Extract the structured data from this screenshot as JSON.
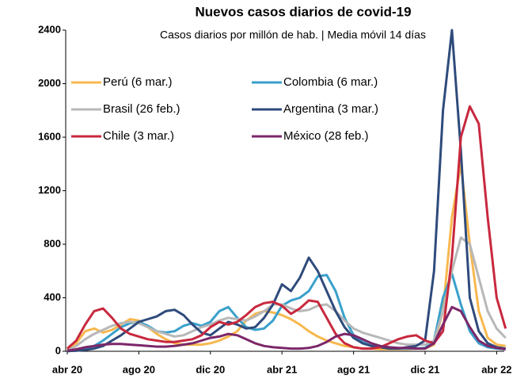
{
  "chart_data": {
    "type": "line",
    "title": "Nuevos casos diarios de covid-19",
    "subtitle": "Casos diarios por millón de hab. | Media móvil 14 días",
    "categories": [
      "abr 20",
      null,
      null,
      null,
      null,
      null,
      null,
      null,
      "ago 20",
      null,
      null,
      null,
      null,
      null,
      null,
      null,
      "dic 20",
      null,
      null,
      null,
      null,
      null,
      null,
      null,
      "abr 21",
      null,
      null,
      null,
      null,
      null,
      null,
      null,
      "ago 21",
      null,
      null,
      null,
      null,
      null,
      null,
      null,
      "dic 21",
      null,
      null,
      null,
      null,
      null,
      null,
      null,
      "abr 22",
      null
    ],
    "ylim": [
      0,
      2400
    ],
    "yticks": [
      0,
      400,
      800,
      1200,
      1600,
      2000,
      2400
    ],
    "grid": false,
    "series": [
      {
        "name": "Perú (6 mar.)",
        "color": "#f7b84f",
        "values": [
          10,
          60,
          150,
          170,
          140,
          160,
          200,
          240,
          230,
          180,
          130,
          90,
          60,
          50,
          50,
          50,
          60,
          80,
          110,
          150,
          230,
          280,
          300,
          290,
          270,
          240,
          200,
          150,
          110,
          80,
          60,
          40,
          30,
          20,
          20,
          15,
          15,
          15,
          15,
          20,
          20,
          50,
          300,
          1000,
          1400,
          800,
          300,
          100,
          50,
          40
        ]
      },
      {
        "name": "Colombia (6 mar.)",
        "color": "#3aa0cb",
        "values": [
          2,
          5,
          15,
          40,
          80,
          130,
          180,
          210,
          220,
          190,
          150,
          140,
          150,
          190,
          210,
          190,
          220,
          300,
          330,
          250,
          180,
          160,
          170,
          230,
          340,
          380,
          400,
          450,
          560,
          570,
          450,
          250,
          120,
          70,
          40,
          30,
          25,
          20,
          20,
          20,
          25,
          80,
          400,
          580,
          350,
          150,
          60,
          30,
          20,
          15
        ]
      },
      {
        "name": "Brasil (26 feb.)",
        "color": "#b8b8b8",
        "values": [
          5,
          40,
          90,
          130,
          160,
          190,
          210,
          220,
          210,
          180,
          150,
          130,
          110,
          120,
          150,
          180,
          200,
          230,
          250,
          240,
          230,
          260,
          300,
          350,
          350,
          320,
          300,
          310,
          340,
          350,
          300,
          230,
          170,
          140,
          120,
          100,
          80,
          60,
          50,
          50,
          50,
          80,
          300,
          600,
          850,
          800,
          550,
          300,
          170,
          100
        ]
      },
      {
        "name": "Argentina (3 mar.)",
        "color": "#2f4b7c",
        "values": [
          2,
          5,
          10,
          20,
          40,
          80,
          120,
          170,
          220,
          240,
          260,
          300,
          310,
          270,
          200,
          140,
          120,
          170,
          220,
          200,
          170,
          180,
          250,
          350,
          500,
          450,
          550,
          700,
          600,
          450,
          300,
          180,
          100,
          60,
          40,
          30,
          20,
          20,
          30,
          40,
          80,
          600,
          1800,
          2400,
          1500,
          400,
          150,
          60,
          30,
          20
        ]
      },
      {
        "name": "Chile (3 mar.)",
        "color": "#c8283e",
        "values": [
          20,
          80,
          200,
          300,
          320,
          250,
          170,
          130,
          110,
          90,
          80,
          70,
          70,
          80,
          90,
          120,
          180,
          220,
          200,
          220,
          270,
          330,
          360,
          370,
          340,
          280,
          320,
          380,
          370,
          250,
          130,
          60,
          30,
          20,
          20,
          30,
          60,
          90,
          110,
          120,
          80,
          60,
          150,
          700,
          1600,
          1830,
          1700,
          1000,
          400,
          170
        ]
      },
      {
        "name": "México (28 feb.)",
        "color": "#7b2769",
        "values": [
          5,
          15,
          30,
          40,
          50,
          55,
          55,
          50,
          45,
          40,
          35,
          35,
          40,
          50,
          60,
          80,
          100,
          110,
          130,
          120,
          90,
          60,
          40,
          30,
          25,
          20,
          20,
          25,
          40,
          70,
          110,
          130,
          120,
          90,
          60,
          40,
          30,
          25,
          25,
          20,
          20,
          60,
          200,
          330,
          300,
          180,
          80,
          40,
          25,
          15
        ]
      }
    ]
  }
}
